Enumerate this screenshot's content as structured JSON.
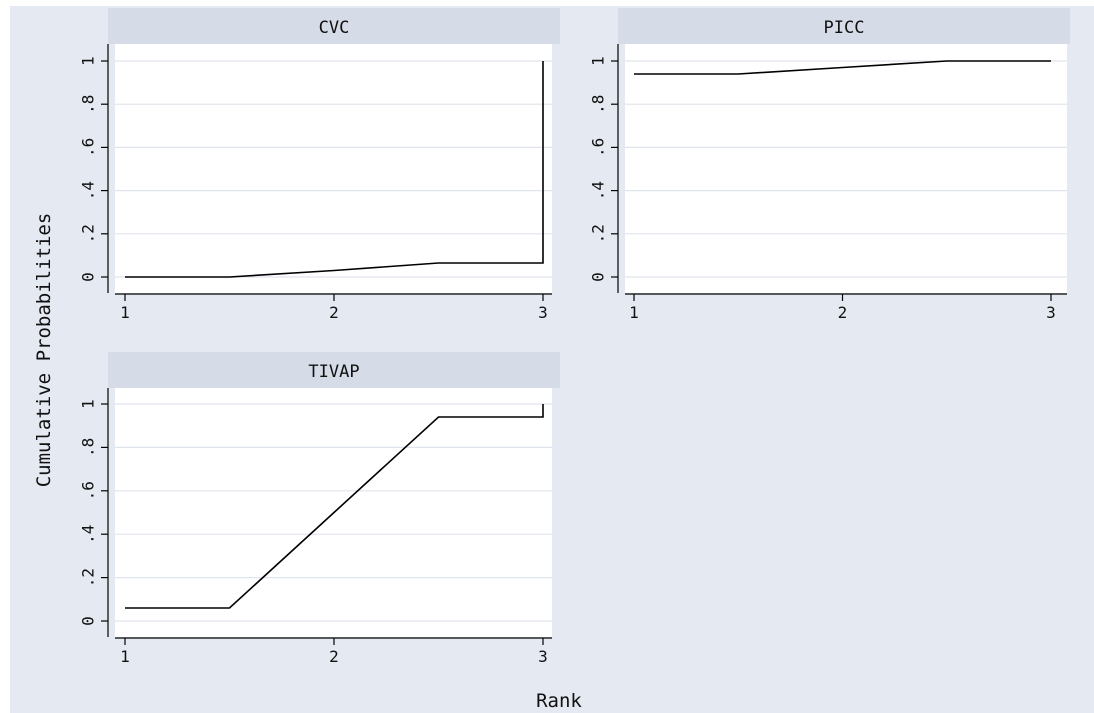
{
  "colors": {
    "background": "#E5EAF2",
    "plot_area": "#FFFFFF",
    "strip": "#D5DBE7",
    "line": "#000000",
    "gridline": "#E0E4EC"
  },
  "chart_data": {
    "type": "line",
    "xlabel": "Rank",
    "ylabel": "Cumulative Probabilities",
    "x_ticks": [
      "1",
      "2",
      "3"
    ],
    "y_ticks": [
      "0",
      ".2",
      ".4",
      ".6",
      ".8",
      "1"
    ],
    "xlim": [
      1,
      3
    ],
    "ylim": [
      0,
      1
    ],
    "grid": true,
    "panels": [
      {
        "name": "CVC",
        "x": [
          1,
          1.5,
          2,
          2.5,
          3,
          3
        ],
        "y": [
          0,
          0,
          0.03,
          0.065,
          0.065,
          1
        ]
      },
      {
        "name": "PICC",
        "x": [
          1,
          1.5,
          2,
          2.5,
          3
        ],
        "y": [
          0.94,
          0.94,
          0.97,
          1,
          1
        ]
      },
      {
        "name": "TIVAP",
        "x": [
          1,
          1.5,
          2,
          2.5,
          3,
          3
        ],
        "y": [
          0.06,
          0.06,
          0.5,
          0.94,
          0.94,
          1
        ]
      }
    ]
  }
}
